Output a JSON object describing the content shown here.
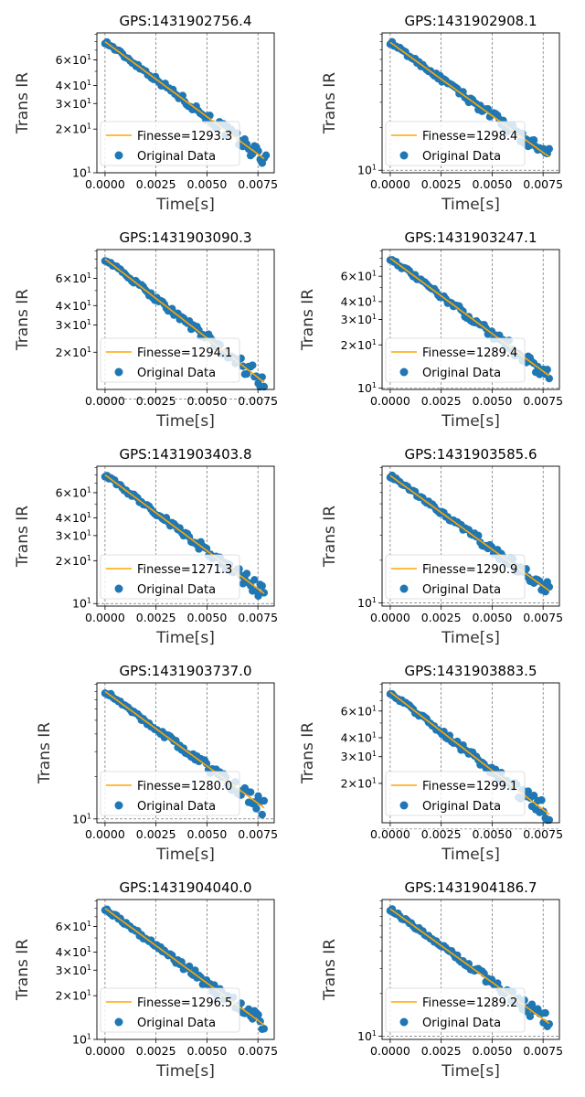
{
  "figure": {
    "colors": {
      "fit": "#ffa500",
      "data": "#1f77b4",
      "axis": "#000000",
      "grid": "#555555"
    }
  },
  "chart_data": [
    {
      "type": "scatter",
      "title": "GPS:1431902756.4",
      "xlabel": "Time[s]",
      "ylabel": "Trans IR",
      "y_scale": "log",
      "xlim": [
        -0.0004,
        0.0083
      ],
      "ylim": [
        10,
        92
      ],
      "grid": "dashed vertical",
      "legend": "lower left",
      "x_ticks": [
        "0.0000",
        "0.0025",
        "0.0050",
        "0.0075"
      ],
      "y_ticks": [
        {
          "v": 10,
          "t": "10^1"
        },
        {
          "v": 20,
          "t": "2×10^1"
        },
        {
          "v": 30,
          "t": "3×10^1"
        },
        {
          "v": 40,
          "t": "4×10^1"
        },
        {
          "v": 60,
          "t": "6×10^1"
        }
      ],
      "legend_labels": [
        "Finesse=1293.3",
        "Original Data"
      ],
      "fit": {
        "y0": 80,
        "y_end": 12.5,
        "x_end": 0.0078
      },
      "data_x_end": 0.0079
    },
    {
      "type": "scatter",
      "title": "GPS:1431902908.1",
      "xlabel": "Time[s]",
      "ylabel": "Trans IR",
      "y_scale": "log",
      "xlim": [
        -0.0004,
        0.0083
      ],
      "ylim": [
        9.6,
        92
      ],
      "grid": "dashed vertical",
      "legend": "lower left",
      "x_ticks": [
        "0.0000",
        "0.0025",
        "0.0050",
        "0.0075"
      ],
      "y_ticks": [
        {
          "v": 10,
          "t": "10^1"
        }
      ],
      "legend_labels": [
        "Finesse=1298.4",
        "Original Data"
      ],
      "fit": {
        "y0": 79,
        "y_end": 12.4,
        "x_end": 0.0078
      },
      "data_x_end": 0.0078
    },
    {
      "type": "scatter",
      "title": "GPS:1431903090.3",
      "xlabel": "Time[s]",
      "ylabel": "Trans IR",
      "y_scale": "log",
      "xlim": [
        -0.0004,
        0.0083
      ],
      "ylim": [
        11.5,
        92
      ],
      "grid": "dashed vertical",
      "legend": "lower left",
      "x_ticks": [
        "0.0000",
        "0.0025",
        "0.0050",
        "0.0075"
      ],
      "y_ticks": [
        {
          "v": 20,
          "t": "2×10^1"
        },
        {
          "v": 30,
          "t": "3×10^1"
        },
        {
          "v": 40,
          "t": "4×10^1"
        },
        {
          "v": 60,
          "t": "6×10^1"
        }
      ],
      "legend_labels": [
        "Finesse=1294.1",
        "Original Data"
      ],
      "fit": {
        "y0": 80,
        "y_end": 12.8,
        "x_end": 0.0078
      },
      "data_x_end": 0.0078
    },
    {
      "type": "scatter",
      "title": "GPS:1431903247.1",
      "xlabel": "Time[s]",
      "ylabel": "Trans IR",
      "y_scale": "log",
      "xlim": [
        -0.0004,
        0.0083
      ],
      "ylim": [
        9.8,
        92
      ],
      "grid": "dashed vertical",
      "legend": "lower left",
      "x_ticks": [
        "0.0000",
        "0.0025",
        "0.0050",
        "0.0075"
      ],
      "y_ticks": [
        {
          "v": 10,
          "t": "10^1"
        },
        {
          "v": 20,
          "t": "2×10^1"
        },
        {
          "v": 30,
          "t": "3×10^1"
        },
        {
          "v": 40,
          "t": "4×10^1"
        },
        {
          "v": 60,
          "t": "6×10^1"
        }
      ],
      "legend_labels": [
        "Finesse=1289.4",
        "Original Data"
      ],
      "fit": {
        "y0": 80,
        "y_end": 12.2,
        "x_end": 0.0078
      },
      "data_x_end": 0.0078
    },
    {
      "type": "scatter",
      "title": "GPS:1431903403.8",
      "xlabel": "Time[s]",
      "ylabel": "Trans IR",
      "y_scale": "log",
      "xlim": [
        -0.0004,
        0.0083
      ],
      "ylim": [
        9.6,
        92
      ],
      "grid": "dashed vertical",
      "legend": "lower left",
      "x_ticks": [
        "0.0000",
        "0.0025",
        "0.0050",
        "0.0075"
      ],
      "y_ticks": [
        {
          "v": 10,
          "t": "10^1"
        },
        {
          "v": 20,
          "t": "2×10^1"
        },
        {
          "v": 30,
          "t": "3×10^1"
        },
        {
          "v": 40,
          "t": "4×10^1"
        },
        {
          "v": 60,
          "t": "6×10^1"
        }
      ],
      "legend_labels": [
        "Finesse=1271.3",
        "Original Data"
      ],
      "fit": {
        "y0": 80,
        "y_end": 11.8,
        "x_end": 0.0078
      },
      "data_x_end": 0.0078
    },
    {
      "type": "scatter",
      "title": "GPS:1431903585.6",
      "xlabel": "Time[s]",
      "ylabel": "Trans IR",
      "y_scale": "log",
      "xlim": [
        -0.0004,
        0.0083
      ],
      "ylim": [
        9.5,
        92
      ],
      "grid": "dashed vertical",
      "legend": "lower left",
      "x_ticks": [
        "0.0000",
        "0.0025",
        "0.0050",
        "0.0075"
      ],
      "y_ticks": [
        {
          "v": 10,
          "t": "10^1"
        }
      ],
      "legend_labels": [
        "Finesse=1290.9",
        "Original Data"
      ],
      "fit": {
        "y0": 79,
        "y_end": 12.2,
        "x_end": 0.0078
      },
      "data_x_end": 0.0078
    },
    {
      "type": "scatter",
      "title": "GPS:1431903737.0",
      "xlabel": "Time[s]",
      "ylabel": "Trans IR",
      "y_scale": "log",
      "xlim": [
        -0.0004,
        0.0083
      ],
      "ylim": [
        9.4,
        92
      ],
      "grid": "dashed vertical",
      "legend": "lower left",
      "x_ticks": [
        "0.0000",
        "0.0025",
        "0.0050",
        "0.0075"
      ],
      "y_ticks": [
        {
          "v": 10,
          "t": "10^1"
        }
      ],
      "legend_labels": [
        "Finesse=1280.0",
        "Original Data"
      ],
      "fit": {
        "y0": 80,
        "y_end": 12.0,
        "x_end": 0.0078
      },
      "data_x_end": 0.0078
    },
    {
      "type": "scatter",
      "title": "GPS:1431903883.5",
      "xlabel": "Time[s]",
      "ylabel": "Trans IR",
      "y_scale": "log",
      "xlim": [
        -0.0004,
        0.0083
      ],
      "ylim": [
        11.0,
        92
      ],
      "grid": "dashed vertical",
      "legend": "lower left",
      "x_ticks": [
        "0.0000",
        "0.0025",
        "0.0050",
        "0.0075"
      ],
      "y_ticks": [
        {
          "v": 20,
          "t": "2×10^1"
        },
        {
          "v": 30,
          "t": "3×10^1"
        },
        {
          "v": 40,
          "t": "4×10^1"
        },
        {
          "v": 60,
          "t": "6×10^1"
        }
      ],
      "legend_labels": [
        "Finesse=1299.1",
        "Original Data"
      ],
      "fit": {
        "y0": 80,
        "y_end": 12.5,
        "x_end": 0.0078
      },
      "data_x_end": 0.0078
    },
    {
      "type": "scatter",
      "title": "GPS:1431904040.0",
      "xlabel": "Time[s]",
      "ylabel": "Trans IR",
      "y_scale": "log",
      "xlim": [
        -0.0004,
        0.0083
      ],
      "ylim": [
        10,
        92
      ],
      "grid": "dashed vertical",
      "legend": "lower left",
      "x_ticks": [
        "0.0000",
        "0.0025",
        "0.0050",
        "0.0075"
      ],
      "y_ticks": [
        {
          "v": 10,
          "t": "10^1"
        },
        {
          "v": 20,
          "t": "2×10^1"
        },
        {
          "v": 30,
          "t": "3×10^1"
        },
        {
          "v": 40,
          "t": "4×10^1"
        },
        {
          "v": 60,
          "t": "6×10^1"
        }
      ],
      "legend_labels": [
        "Finesse=1296.5",
        "Original Data"
      ],
      "fit": {
        "y0": 80,
        "y_end": 12.6,
        "x_end": 0.0078
      },
      "data_x_end": 0.0078
    },
    {
      "type": "scatter",
      "title": "GPS:1431904186.7",
      "xlabel": "Time[s]",
      "ylabel": "Trans IR",
      "y_scale": "log",
      "xlim": [
        -0.0004,
        0.0083
      ],
      "ylim": [
        9.5,
        92
      ],
      "grid": "dashed vertical",
      "legend": "lower left",
      "x_ticks": [
        "0.0000",
        "0.0025",
        "0.0050",
        "0.0075"
      ],
      "y_ticks": [
        {
          "v": 10,
          "t": "10^1"
        }
      ],
      "legend_labels": [
        "Finesse=1289.2",
        "Original Data"
      ],
      "fit": {
        "y0": 79,
        "y_end": 12.3,
        "x_end": 0.0078
      },
      "data_x_end": 0.0078
    }
  ]
}
